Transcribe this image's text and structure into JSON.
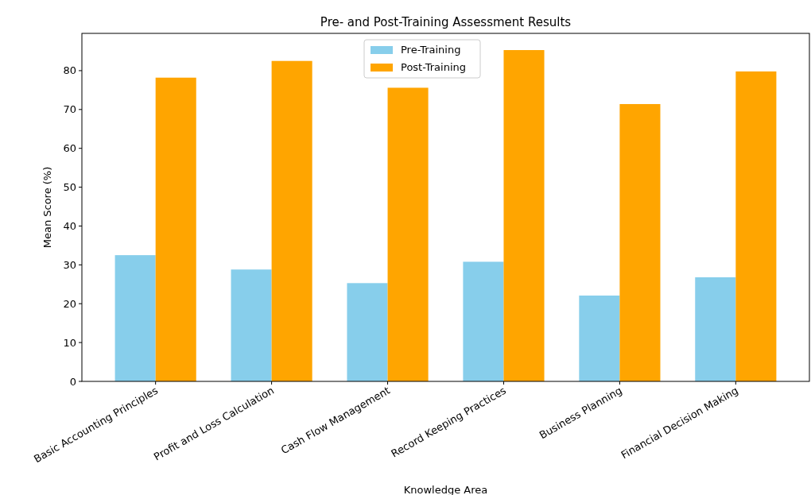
{
  "chart_data": {
    "type": "bar",
    "title": "Pre- and Post-Training Assessment Results",
    "xlabel": "Knowledge Area",
    "ylabel": "Mean Score (%)",
    "categories": [
      "Basic Accounting Principles",
      "Profit and Loss Calculation",
      "Cash Flow Management",
      "Record Keeping Practices",
      "Business Planning",
      "Financial Decision Making"
    ],
    "series": [
      {
        "name": "Pre-Training",
        "color": "#87ceeb",
        "values": [
          32.5,
          28.8,
          25.3,
          30.8,
          22.1,
          26.8
        ]
      },
      {
        "name": "Post-Training",
        "color": "#ffa500",
        "values": [
          78.2,
          82.5,
          75.6,
          85.3,
          71.4,
          79.8
        ]
      }
    ],
    "ylim": [
      0,
      89.6
    ],
    "yticks": [
      0,
      10,
      20,
      30,
      40,
      50,
      60,
      70,
      80
    ],
    "legend": "top",
    "grid": false
  }
}
